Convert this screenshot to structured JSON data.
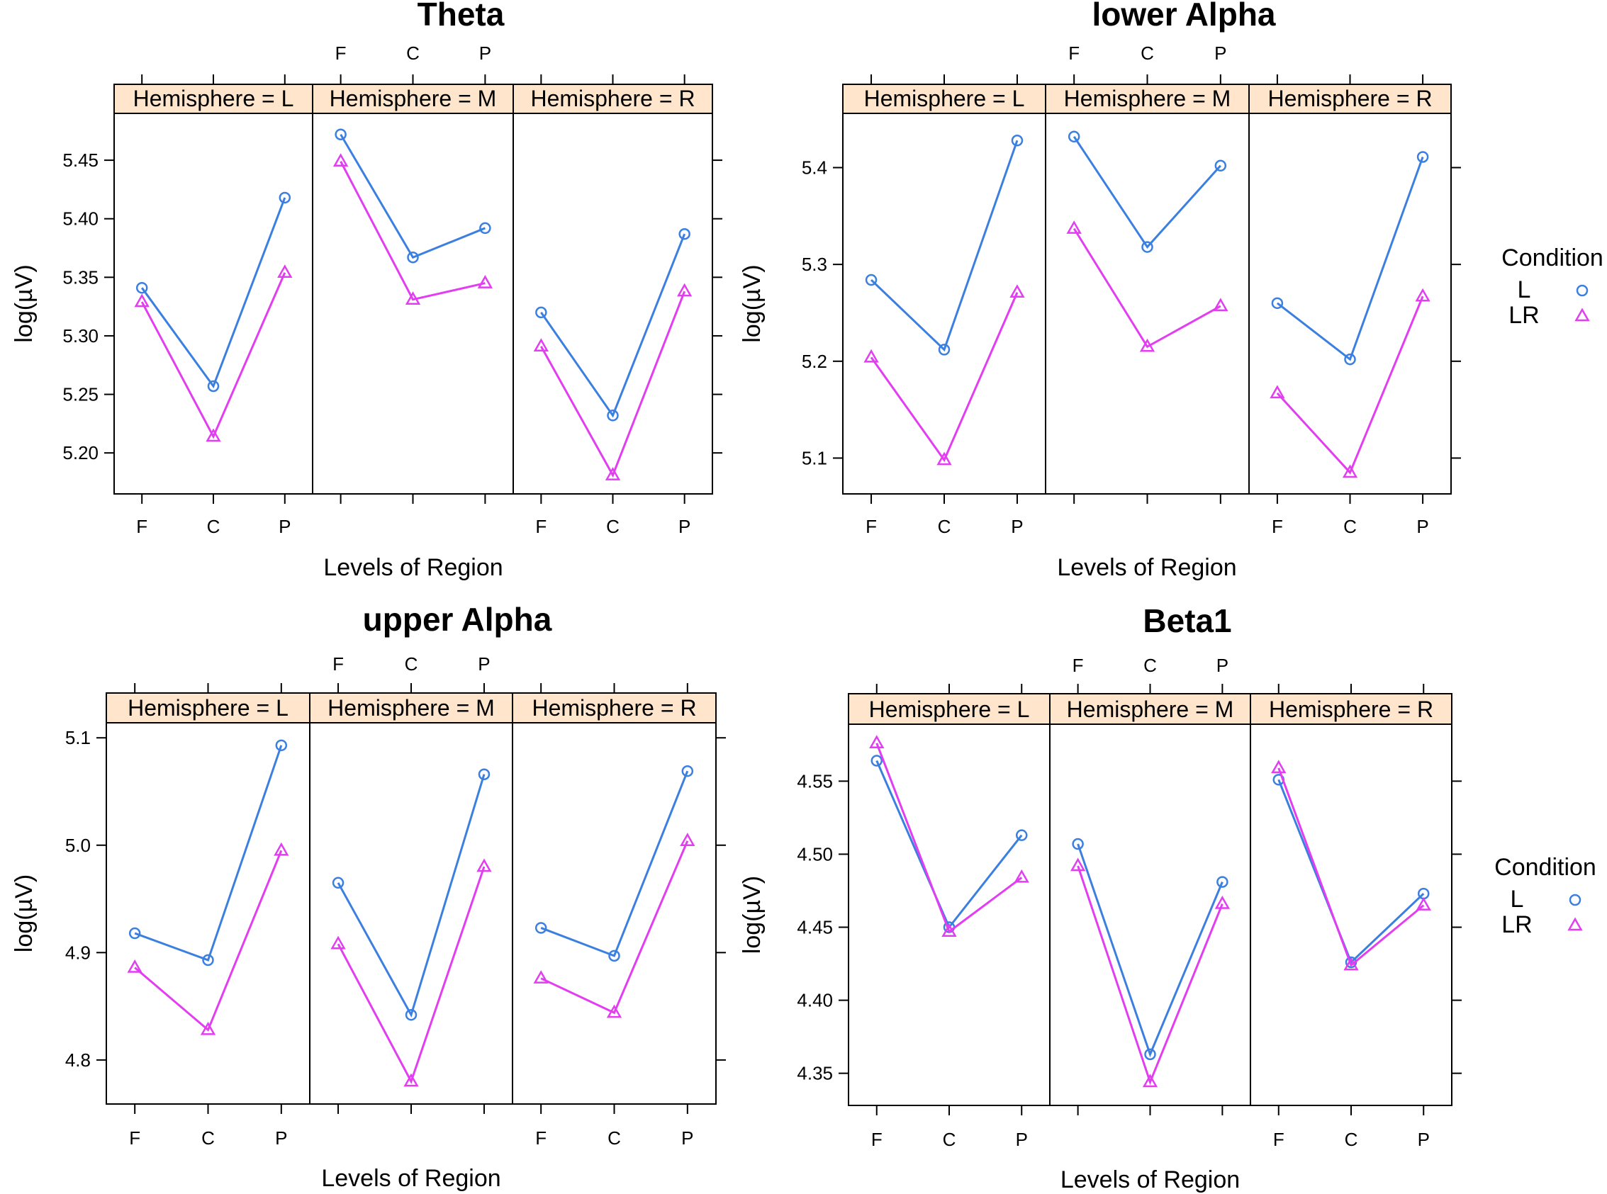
{
  "colors": {
    "L": "#3B7FE0",
    "LR": "#E23DF0",
    "strip": "#FFE5CC"
  },
  "chart_data": [
    {
      "type": "line",
      "title": "Theta",
      "xlabel": "Levels of Region",
      "ylabel": "log(µV)",
      "categories": [
        "F",
        "C",
        "P"
      ],
      "ylim": [
        5.165,
        5.49
      ],
      "yticks": [
        "5.20",
        "5.25",
        "5.30",
        "5.35",
        "5.40",
        "5.45"
      ],
      "panel_labels": [
        "Hemisphere = L",
        "Hemisphere = M",
        "Hemisphere = R"
      ],
      "legend": null,
      "panels": [
        {
          "name": "L",
          "series": [
            {
              "name": "L",
              "values": [
                5.341,
                5.257,
                5.418
              ]
            },
            {
              "name": "LR",
              "values": [
                5.329,
                5.214,
                5.354
              ]
            }
          ]
        },
        {
          "name": "M",
          "series": [
            {
              "name": "L",
              "values": [
                5.472,
                5.367,
                5.392
              ]
            },
            {
              "name": "LR",
              "values": [
                5.449,
                5.331,
                5.345
              ]
            }
          ]
        },
        {
          "name": "R",
          "series": [
            {
              "name": "L",
              "values": [
                5.32,
                5.232,
                5.387
              ]
            },
            {
              "name": "LR",
              "values": [
                5.291,
                5.181,
                5.338
              ]
            }
          ]
        }
      ]
    },
    {
      "type": "line",
      "title": "lower Alpha",
      "xlabel": "Levels of Region",
      "ylabel": "log(µV)",
      "categories": [
        "F",
        "C",
        "P"
      ],
      "ylim": [
        5.063,
        5.456
      ],
      "yticks": [
        "5.1",
        "5.2",
        "5.3",
        "5.4"
      ],
      "panel_labels": [
        "Hemisphere = L",
        "Hemisphere = M",
        "Hemisphere = R"
      ],
      "legend": {
        "title": "Condition",
        "entries": [
          "L",
          "LR"
        ]
      },
      "panels": [
        {
          "name": "L",
          "series": [
            {
              "name": "L",
              "values": [
                5.284,
                5.212,
                5.428
              ]
            },
            {
              "name": "LR",
              "values": [
                5.204,
                5.098,
                5.271
              ]
            }
          ]
        },
        {
          "name": "M",
          "series": [
            {
              "name": "L",
              "values": [
                5.432,
                5.318,
                5.402
              ]
            },
            {
              "name": "LR",
              "values": [
                5.337,
                5.215,
                5.257
              ]
            }
          ]
        },
        {
          "name": "R",
          "series": [
            {
              "name": "L",
              "values": [
                5.26,
                5.202,
                5.411
              ]
            },
            {
              "name": "LR",
              "values": [
                5.167,
                5.085,
                5.267
              ]
            }
          ]
        }
      ]
    },
    {
      "type": "line",
      "title": "upper Alpha",
      "xlabel": "Levels of Region",
      "ylabel": "log(µV)",
      "categories": [
        "F",
        "C",
        "P"
      ],
      "ylim": [
        4.759,
        5.114
      ],
      "yticks": [
        "4.8",
        "4.9",
        "5.0",
        "5.1"
      ],
      "panel_labels": [
        "Hemisphere = L",
        "Hemisphere = M",
        "Hemisphere = R"
      ],
      "legend": null,
      "panels": [
        {
          "name": "L",
          "series": [
            {
              "name": "L",
              "values": [
                4.918,
                4.893,
                5.093
              ]
            },
            {
              "name": "LR",
              "values": [
                4.886,
                4.828,
                4.995
              ]
            }
          ]
        },
        {
          "name": "M",
          "series": [
            {
              "name": "L",
              "values": [
                4.965,
                4.842,
                5.066
              ]
            },
            {
              "name": "LR",
              "values": [
                4.908,
                4.78,
                4.98
              ]
            }
          ]
        },
        {
          "name": "R",
          "series": [
            {
              "name": "L",
              "values": [
                4.923,
                4.897,
                5.069
              ]
            },
            {
              "name": "LR",
              "values": [
                4.876,
                4.844,
                5.004
              ]
            }
          ]
        }
      ]
    },
    {
      "type": "line",
      "title": "Beta1",
      "xlabel": "Levels of Region",
      "ylabel": "log(µV)",
      "categories": [
        "F",
        "C",
        "P"
      ],
      "ylim": [
        4.328,
        4.589
      ],
      "yticks": [
        "4.35",
        "4.40",
        "4.45",
        "4.50",
        "4.55"
      ],
      "panel_labels": [
        "Hemisphere = L",
        "Hemisphere = M",
        "Hemisphere = R"
      ],
      "legend": {
        "title": "Condition",
        "entries": [
          "L",
          "LR"
        ]
      },
      "panels": [
        {
          "name": "L",
          "series": [
            {
              "name": "L",
              "values": [
                4.564,
                4.45,
                4.513
              ]
            },
            {
              "name": "LR",
              "values": [
                4.576,
                4.447,
                4.484
              ]
            }
          ]
        },
        {
          "name": "M",
          "series": [
            {
              "name": "L",
              "values": [
                4.507,
                4.363,
                4.481
              ]
            },
            {
              "name": "LR",
              "values": [
                4.492,
                4.344,
                4.466
              ]
            }
          ]
        },
        {
          "name": "R",
          "series": [
            {
              "name": "L",
              "values": [
                4.551,
                4.426,
                4.473
              ]
            },
            {
              "name": "LR",
              "values": [
                4.559,
                4.424,
                4.465
              ]
            }
          ]
        }
      ]
    }
  ]
}
